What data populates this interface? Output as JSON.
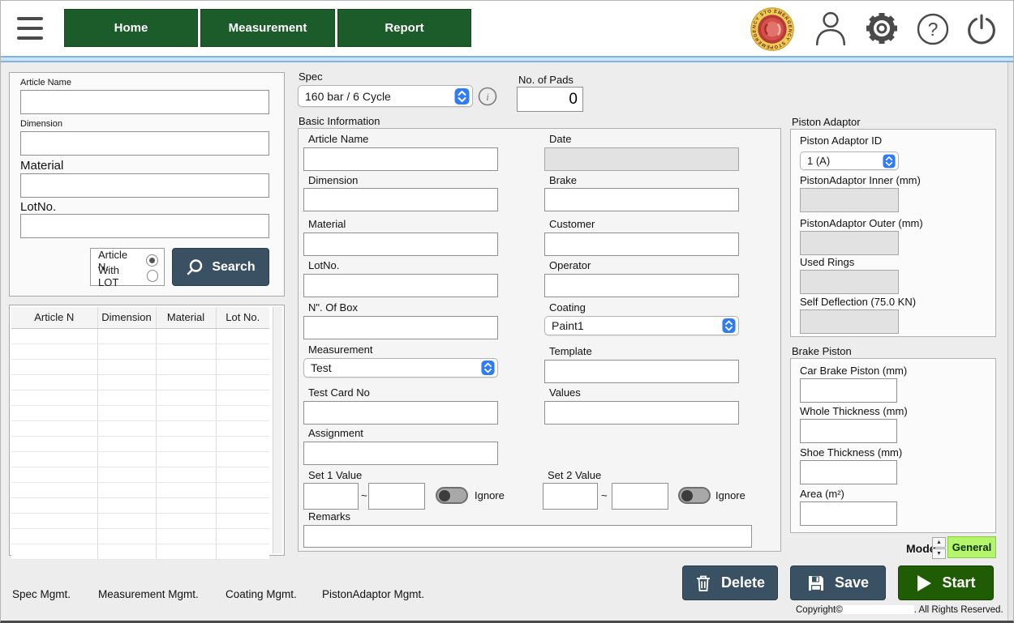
{
  "nav": {
    "items": [
      {
        "label": "Home"
      },
      {
        "label": "Measurement"
      },
      {
        "label": "Report"
      }
    ]
  },
  "search_panel": {
    "article_name": "Article Name",
    "dimension": "Dimension",
    "material": "Material",
    "lot_no": "LotNo.",
    "radio_article": "Article N.",
    "radio_with_lot": "With LOT",
    "search": "Search"
  },
  "results_table": {
    "columns": [
      "Article N",
      "Dimension",
      "Material",
      "Lot No."
    ],
    "row_count": 15,
    "rows": []
  },
  "spec": {
    "label": "Spec",
    "value": "160 bar / 6 Cycle"
  },
  "no_of_pads": {
    "label": "No. of Pads",
    "value": "0"
  },
  "basic": {
    "title": "Basic Information",
    "article_name": "Article Name",
    "dimension": "Dimension",
    "material": "Material",
    "lot_no": "LotNo.",
    "n_of_box": "N\". Of Box",
    "measurement": "Measurement",
    "measurement_value": "Test",
    "test_card_no": "Test Card No",
    "assignment": "Assignment",
    "set1": "Set 1 Value",
    "set2": "Set 2 Value",
    "tilde": "~",
    "ignore": "Ignore",
    "remarks": "Remarks",
    "date": "Date",
    "brake": "Brake",
    "customer": "Customer",
    "operator": "Operator",
    "coating": "Coating",
    "coating_value": "Paint1",
    "template": "Template",
    "values": "Values"
  },
  "piston_adaptor": {
    "title": "Piston Adaptor",
    "id_label": "Piston Adaptor ID",
    "id_value": "1 (A)",
    "inner_label": "PistonAdaptor Inner (mm)",
    "outer_label": "PistonAdaptor Outer (mm)",
    "used_rings_label": "Used Rings",
    "self_deflection_label": "Self Deflection (75.0 KN)"
  },
  "brake_piston": {
    "title": "Brake Piston",
    "car_label": "Car Brake Piston (mm)",
    "whole_label": "Whole Thickness (mm)",
    "shoe_label": "Shoe Thickness (mm)",
    "area_label": "Area (m²)"
  },
  "mode": {
    "label": "Mode",
    "value": "General"
  },
  "actions": {
    "delete": "Delete",
    "save": "Save",
    "start": "Start"
  },
  "footer": {
    "links": [
      {
        "label": "Spec Mgmt."
      },
      {
        "label": "Measurement Mgmt."
      },
      {
        "label": "Coating Mgmt."
      },
      {
        "label": "PistonAdaptor Mgmt."
      }
    ],
    "copyright_prefix": "Copyright©",
    "copyright_suffix": ". All Rights Reserved."
  },
  "colors": {
    "nav_green": "#1c5b2a",
    "start_green": "#205c04",
    "slate": "#3a5063",
    "accent_blue": "#2f7cf6",
    "general_green": "#b5f46d"
  }
}
